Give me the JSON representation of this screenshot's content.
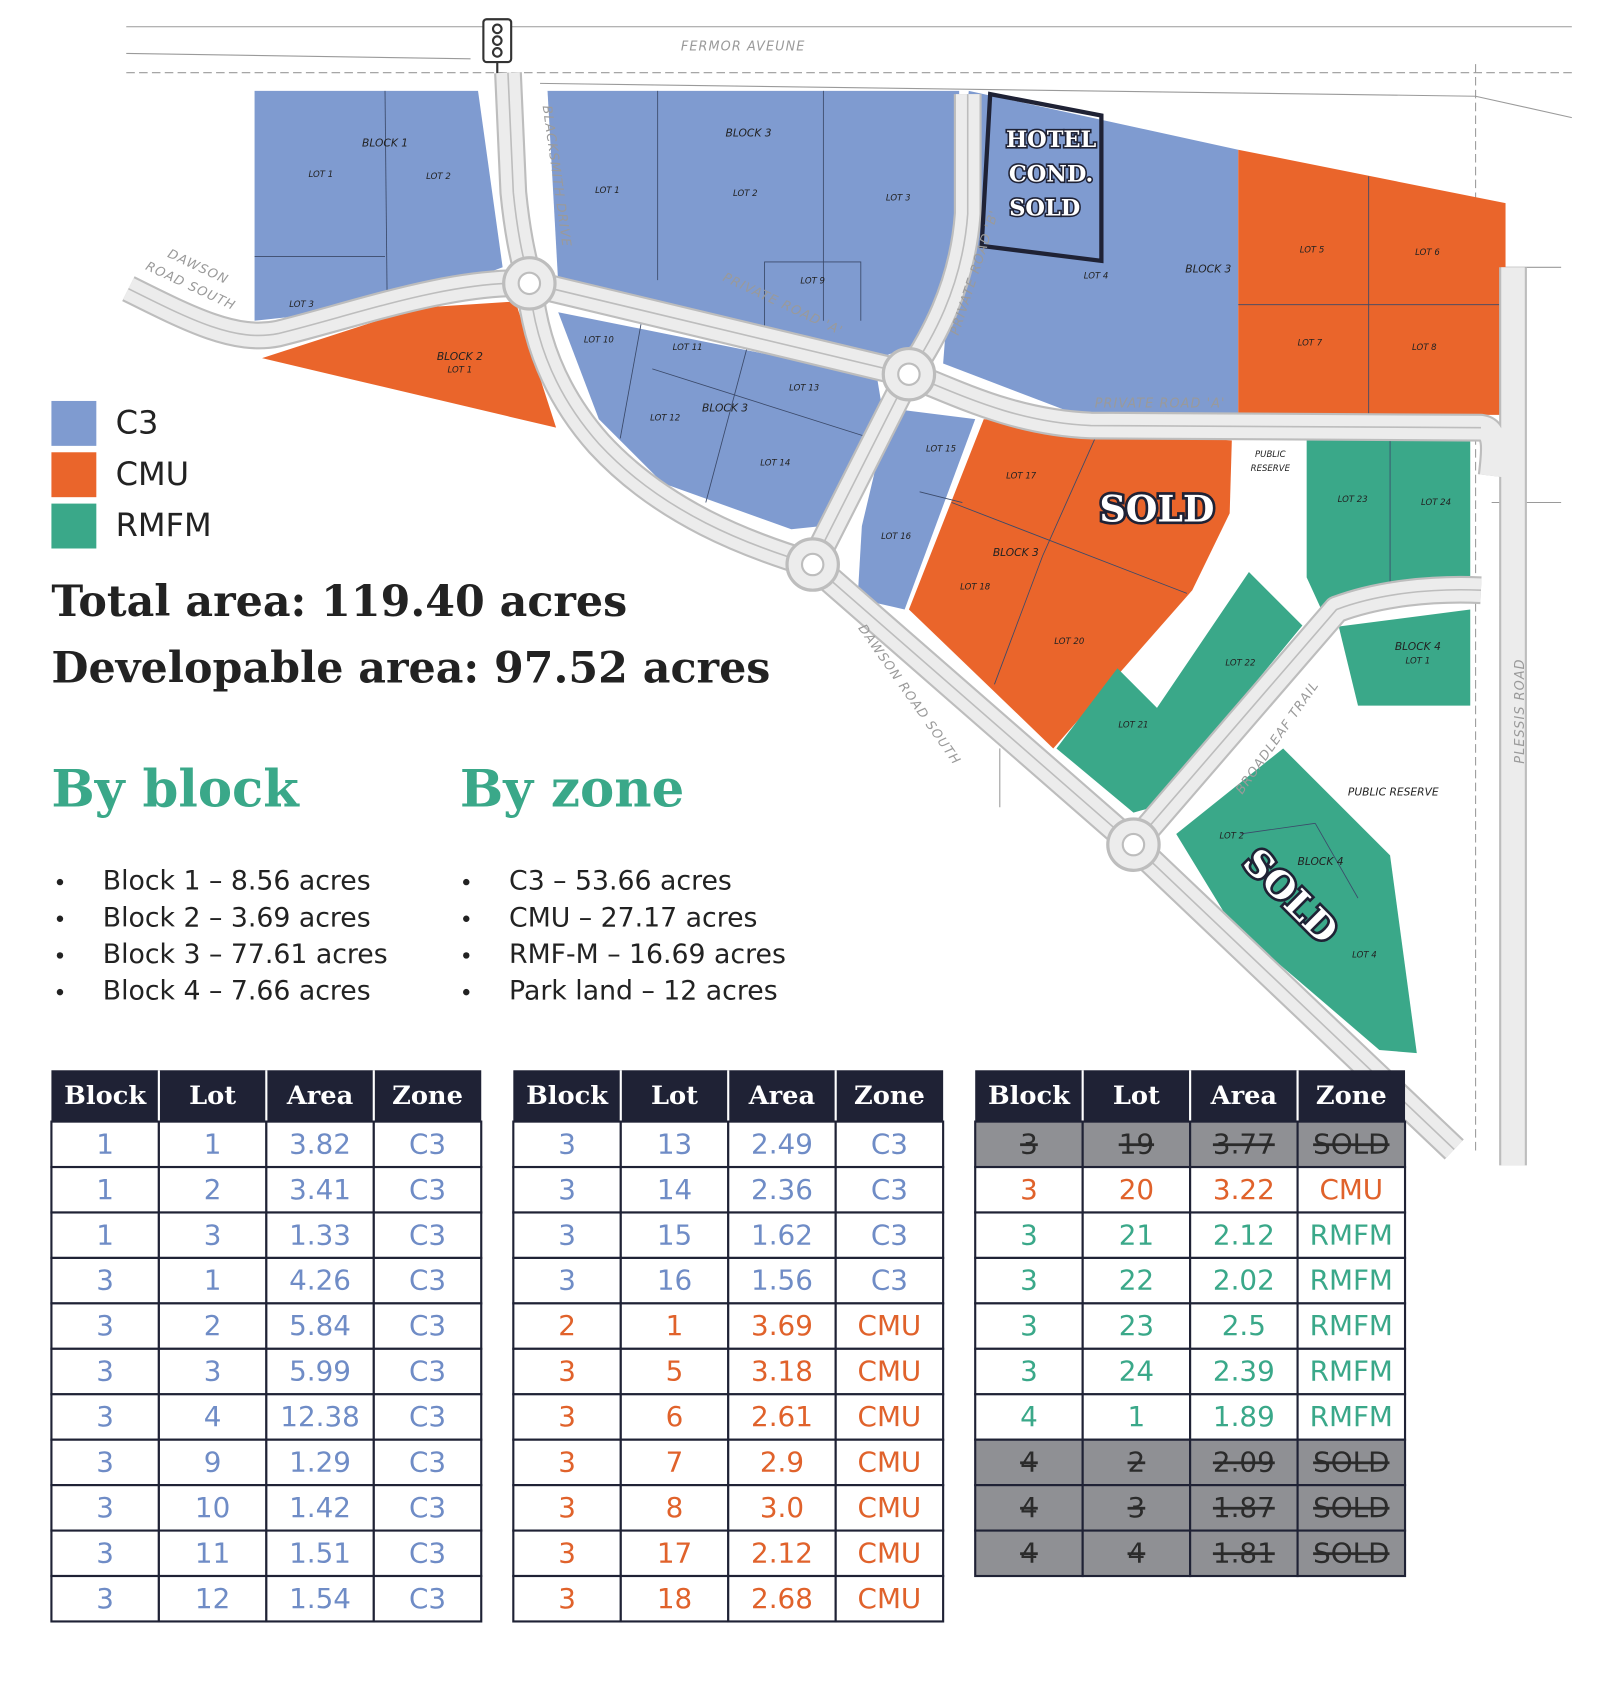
{
  "map": {
    "labels": [
      "FERMOR AVEUNE",
      "BLOCK 1",
      "LOT 1",
      "LOT 2",
      "LOT 3",
      "DAWSON",
      "ROAD SOUTH",
      "BLACKSMITH DRIVE",
      "BLOCK 3",
      "LOT 1",
      "LOT 2",
      "LOT 3",
      "HOTEL",
      "COND.",
      "SOLD",
      "PRIVATE ROAD 'B'",
      "LOT 4",
      "BLOCK 3",
      "LOT 5",
      "LOT 6",
      "LOT 7",
      "LOT 8",
      "PRIVATE ROAD 'A'",
      "LOT 9",
      "BLOCK 2",
      "LOT 1",
      "LOT 10",
      "LOT 11",
      "LOT 13",
      "BLOCK 3",
      "LOT 12",
      "LOT 14",
      "PRIVATE ROAD 'A'",
      "LOT 15",
      "LOT 16",
      "LOT 17",
      "SOLD",
      "BLOCK 3",
      "LOT 18",
      "LOT 20",
      "PUBLIC",
      "RESERVE",
      "LOT 23",
      "LOT 24",
      "BLOCK 4",
      "LOT 1",
      "LOT 22",
      "LOT 21",
      "BROADLEAF TRAIL",
      "PUBLIC RESERVE",
      "DAWSON ROAD SOUTH",
      "PLESSIS ROAD",
      "LOT 2",
      "BLOCK 4",
      "SOLD",
      "LOT 4"
    ]
  },
  "legend": [
    {
      "label": "C3",
      "color": "#7f9bd0"
    },
    {
      "label": "CMU",
      "color": "#ea652b"
    },
    {
      "label": "RMFM",
      "color": "#3aa889"
    }
  ],
  "summary": {
    "total": "Total area: 119.40 acres",
    "developable": "Developable area: 97.52 acres"
  },
  "by_block": {
    "title": "By block",
    "items": [
      "Block 1 – 8.56 acres",
      "Block 2 – 3.69 acres",
      "Block 3 – 77.61 acres",
      "Block 4 – 7.66 acres"
    ]
  },
  "by_zone": {
    "title": "By zone",
    "items": [
      "C3 – 53.66 acres",
      "CMU – 27.17 acres",
      "RMF-M – 16.69 acres",
      "Park land – 12 acres"
    ]
  },
  "tables": [
    {
      "header": [
        "Block",
        "Lot",
        "Area",
        "Zone"
      ],
      "rows": [
        {
          "cells": [
            "1",
            "1",
            "3.82",
            "C3"
          ],
          "color": "#6f8cc6"
        },
        {
          "cells": [
            "1",
            "2",
            "3.41",
            "C3"
          ],
          "color": "#6f8cc6"
        },
        {
          "cells": [
            "1",
            "3",
            "1.33",
            "C3"
          ],
          "color": "#6f8cc6"
        },
        {
          "cells": [
            "3",
            "1",
            "4.26",
            "C3"
          ],
          "color": "#6f8cc6"
        },
        {
          "cells": [
            "3",
            "2",
            "5.84",
            "C3"
          ],
          "color": "#6f8cc6"
        },
        {
          "cells": [
            "3",
            "3",
            "5.99",
            "C3"
          ],
          "color": "#6f8cc6"
        },
        {
          "cells": [
            "3",
            "4",
            "12.38",
            "C3"
          ],
          "color": "#6f8cc6"
        },
        {
          "cells": [
            "3",
            "9",
            "1.29",
            "C3"
          ],
          "color": "#6f8cc6"
        },
        {
          "cells": [
            "3",
            "10",
            "1.42",
            "C3"
          ],
          "color": "#6f8cc6"
        },
        {
          "cells": [
            "3",
            "11",
            "1.51",
            "C3"
          ],
          "color": "#6f8cc6"
        },
        {
          "cells": [
            "3",
            "12",
            "1.54",
            "C3"
          ],
          "color": "#6f8cc6"
        }
      ]
    },
    {
      "header": [
        "Block",
        "Lot",
        "Area",
        "Zone"
      ],
      "rows": [
        {
          "cells": [
            "3",
            "13",
            "2.49",
            "C3"
          ],
          "color": "#6f8cc6"
        },
        {
          "cells": [
            "3",
            "14",
            "2.36",
            "C3"
          ],
          "color": "#6f8cc6"
        },
        {
          "cells": [
            "3",
            "15",
            "1.62",
            "C3"
          ],
          "color": "#6f8cc6"
        },
        {
          "cells": [
            "3",
            "16",
            "1.56",
            "C3"
          ],
          "color": "#6f8cc6"
        },
        {
          "cells": [
            "2",
            "1",
            "3.69",
            "CMU"
          ],
          "color": "#e0622b"
        },
        {
          "cells": [
            "3",
            "5",
            "3.18",
            "CMU"
          ],
          "color": "#e0622b"
        },
        {
          "cells": [
            "3",
            "6",
            "2.61",
            "CMU"
          ],
          "color": "#e0622b"
        },
        {
          "cells": [
            "3",
            "7",
            "2.9",
            "CMU"
          ],
          "color": "#e0622b"
        },
        {
          "cells": [
            "3",
            "8",
            "3.0",
            "CMU"
          ],
          "color": "#e0622b"
        },
        {
          "cells": [
            "3",
            "17",
            "2.12",
            "CMU"
          ],
          "color": "#e0622b"
        },
        {
          "cells": [
            "3",
            "18",
            "2.68",
            "CMU"
          ],
          "color": "#e0622b"
        }
      ]
    },
    {
      "header": [
        "Block",
        "Lot",
        "Area",
        "Zone"
      ],
      "rows": [
        {
          "cells": [
            "3",
            "19",
            "3.77",
            "SOLD"
          ],
          "color": "#2b2b2b",
          "fill": "#8f9094",
          "struck": true
        },
        {
          "cells": [
            "3",
            "20",
            "3.22",
            "CMU"
          ],
          "color": "#e0622b"
        },
        {
          "cells": [
            "3",
            "21",
            "2.12",
            "RMFM"
          ],
          "color": "#3aa889"
        },
        {
          "cells": [
            "3",
            "22",
            "2.02",
            "RMFM"
          ],
          "color": "#3aa889"
        },
        {
          "cells": [
            "3",
            "23",
            "2.5",
            "RMFM"
          ],
          "color": "#3aa889"
        },
        {
          "cells": [
            "3",
            "24",
            "2.39",
            "RMFM"
          ],
          "color": "#3aa889"
        },
        {
          "cells": [
            "4",
            "1",
            "1.89",
            "RMFM"
          ],
          "color": "#3aa889"
        },
        {
          "cells": [
            "4",
            "2",
            "2.09",
            "SOLD"
          ],
          "color": "#2b2b2b",
          "fill": "#8f9094",
          "struck": true
        },
        {
          "cells": [
            "4",
            "3",
            "1.87",
            "SOLD"
          ],
          "color": "#2b2b2b",
          "fill": "#8f9094",
          "struck": true
        },
        {
          "cells": [
            "4",
            "4",
            "1.81",
            "SOLD"
          ],
          "color": "#2b2b2b",
          "fill": "#8f9094",
          "struck": true
        }
      ]
    }
  ]
}
